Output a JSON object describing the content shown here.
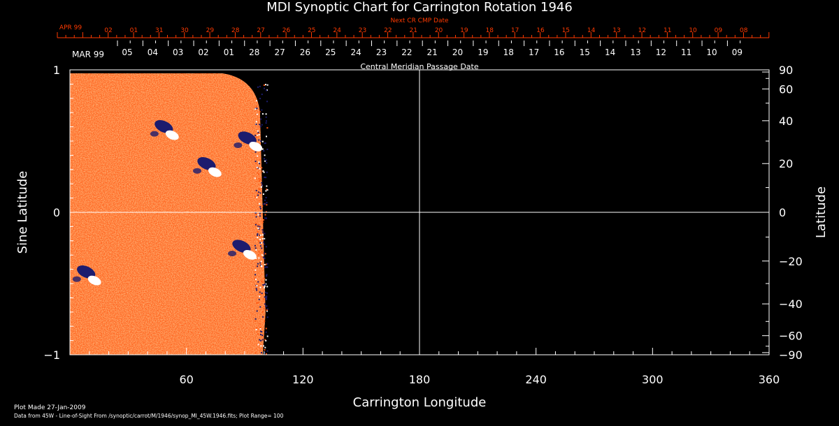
{
  "chart_data": {
    "type": "heatmap",
    "title": "MDI Synoptic Chart for Carrington Rotation 1946",
    "xlabel": "Carrington Longitude",
    "ylabel": "Sine Latitude",
    "y2label": "Latitude",
    "xlim": [
      0,
      360
    ],
    "ylim": [
      -1,
      1
    ],
    "x_ticks": [
      60,
      120,
      180,
      240,
      300,
      360
    ],
    "y_ticks": [
      -1,
      0,
      1
    ],
    "y2_ticks": [
      -90,
      -60,
      -40,
      -20,
      0,
      20,
      40,
      60,
      90
    ],
    "gridlines": {
      "x": [
        180
      ],
      "y": [
        0
      ]
    },
    "data_coverage_longitude": [
      0,
      100
    ],
    "colors": {
      "field_base": "#ff5a14",
      "positive_polarity": "#ffffff",
      "negative_polarity": "#1c1c6e",
      "next_cr_scale": "#ff3a00"
    },
    "active_regions": [
      {
        "lon": 50,
        "sinlat": 0.58,
        "polarity_lead": "negative"
      },
      {
        "lon": 72,
        "sinlat": 0.32,
        "polarity_lead": "negative"
      },
      {
        "lon": 93,
        "sinlat": 0.5,
        "polarity_lead": "negative"
      },
      {
        "lon": 90,
        "sinlat": -0.26,
        "polarity_lead": "negative"
      },
      {
        "lon": 10,
        "sinlat": -0.44,
        "polarity_lead": "negative"
      }
    ],
    "top_axes": {
      "next_cr_title": "Next CR CMP Date",
      "next_cr_month": "APR 99",
      "next_cr_labels": [
        "02",
        "01",
        "31",
        "30",
        "29",
        "28",
        "27",
        "26",
        "25",
        "24",
        "23",
        "22",
        "21",
        "20",
        "19",
        "18",
        "17",
        "16",
        "15",
        "14",
        "13",
        "12",
        "11",
        "10",
        "09",
        "08"
      ],
      "cmp_title": "Central Meridian Passage Date",
      "cmp_month": "MAR 99",
      "cmp_labels": [
        "05",
        "04",
        "03",
        "02",
        "01",
        "28",
        "27",
        "26",
        "25",
        "24",
        "23",
        "22",
        "21",
        "20",
        "19",
        "18",
        "17",
        "16",
        "15",
        "14",
        "13",
        "12",
        "11",
        "10",
        "09"
      ]
    }
  },
  "footer": {
    "plot_made": "Plot Made 27-Jan-2009",
    "data_note": "Data from 45W - Line-of-Sight From /synoptic/carrot/M/1946/synop_Ml_45W.1946.fits; Plot Range=  100"
  }
}
